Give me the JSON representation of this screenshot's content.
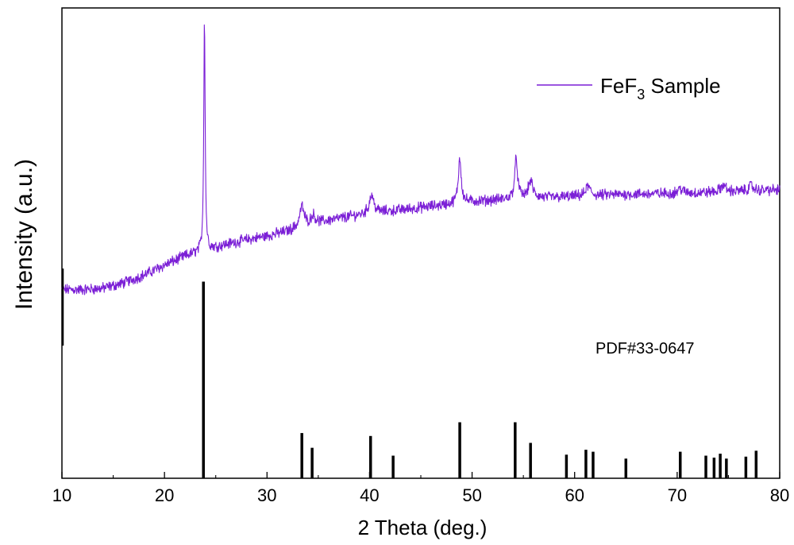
{
  "chart_data": {
    "type": "line",
    "xlabel": "2 Theta (deg.)",
    "ylabel": "Intensity (a.u.)",
    "xlim": [
      10,
      80
    ],
    "ylim": [
      0,
      100
    ],
    "x_ticks": [
      10,
      20,
      30,
      40,
      50,
      60,
      70,
      80
    ],
    "x_minor_ticks": [
      15,
      25,
      35,
      45,
      55,
      65,
      75
    ],
    "y_ticks_shown": false,
    "grid": false,
    "legend_position": "top-right",
    "colors": {
      "sample": "#7b1fd6",
      "reference": "#000000"
    },
    "sample": {
      "legend_main": "FeF",
      "legend_sub": "3",
      "legend_tail": " Sample",
      "baseline": [
        [
          10,
          40.1
        ],
        [
          12,
          40.1
        ],
        [
          14,
          40.4
        ],
        [
          16,
          41.5
        ],
        [
          18,
          43.2
        ],
        [
          20,
          45.3
        ],
        [
          22,
          47.2
        ],
        [
          24,
          48.5
        ],
        [
          26,
          49.7
        ],
        [
          28,
          50.7
        ],
        [
          30,
          51.5
        ],
        [
          32,
          52.5
        ],
        [
          34,
          53.8
        ],
        [
          36,
          54.8
        ],
        [
          38,
          55.6
        ],
        [
          40,
          56.3
        ],
        [
          42,
          56.8
        ],
        [
          44,
          57.3
        ],
        [
          46,
          57.8
        ],
        [
          48,
          58.3
        ],
        [
          50,
          58.8
        ],
        [
          52,
          59.1
        ],
        [
          54,
          59.4
        ],
        [
          56,
          59.6
        ],
        [
          58,
          59.7
        ],
        [
          60,
          59.9
        ],
        [
          62,
          60.1
        ],
        [
          64,
          60.3
        ],
        [
          66,
          60.4
        ],
        [
          68,
          60.5
        ],
        [
          70,
          60.6
        ],
        [
          72,
          60.7
        ],
        [
          74,
          60.9
        ],
        [
          76,
          61.0
        ],
        [
          78,
          61.2
        ],
        [
          80,
          61.3
        ]
      ],
      "peaks": [
        {
          "x": 23.9,
          "y": 98.5
        },
        {
          "x": 33.4,
          "y": 57.8
        },
        {
          "x": 34.5,
          "y": 55.9
        },
        {
          "x": 40.2,
          "y": 60.3
        },
        {
          "x": 48.8,
          "y": 68.1
        },
        {
          "x": 54.3,
          "y": 67.9
        },
        {
          "x": 55.7,
          "y": 63.2
        },
        {
          "x": 61.3,
          "y": 62.1
        },
        {
          "x": 70.3,
          "y": 61.6
        },
        {
          "x": 74.5,
          "y": 62.4
        },
        {
          "x": 77.2,
          "y": 62.2
        }
      ]
    },
    "reference": {
      "label": "PDF#33-0647",
      "lines": [
        {
          "x": 23.8,
          "i": 100
        },
        {
          "x": 33.4,
          "i": 23
        },
        {
          "x": 34.4,
          "i": 15.5
        },
        {
          "x": 40.1,
          "i": 21.5
        },
        {
          "x": 42.3,
          "i": 11.5
        },
        {
          "x": 48.8,
          "i": 28.5
        },
        {
          "x": 54.2,
          "i": 28.5
        },
        {
          "x": 55.7,
          "i": 18
        },
        {
          "x": 59.2,
          "i": 12
        },
        {
          "x": 61.1,
          "i": 14.5
        },
        {
          "x": 61.8,
          "i": 13.5
        },
        {
          "x": 65.0,
          "i": 10
        },
        {
          "x": 70.3,
          "i": 13.5
        },
        {
          "x": 72.8,
          "i": 11.5
        },
        {
          "x": 73.6,
          "i": 10.5
        },
        {
          "x": 74.2,
          "i": 12.5
        },
        {
          "x": 74.8,
          "i": 10
        },
        {
          "x": 76.7,
          "i": 11
        },
        {
          "x": 77.7,
          "i": 14
        }
      ]
    }
  }
}
